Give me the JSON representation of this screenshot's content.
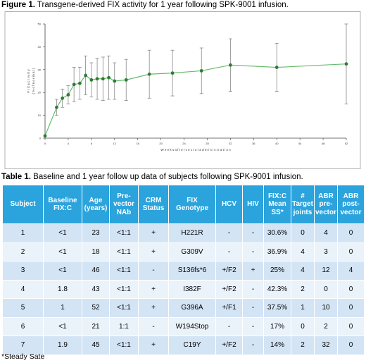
{
  "figure": {
    "label": "Figure 1.",
    "caption": " Transgene-derived FIX activity for 1 year following SPK-9001 infusion."
  },
  "chart_data": {
    "type": "line",
    "title": "",
    "xlabel": "W e e k s   a f t e r   v e c t o r   a d m i n i s t r a t i o n",
    "ylabel": "F I X   a c t i v i t y\n( %   o f   n o r m a l )",
    "xlim": [
      0,
      52
    ],
    "ylim": [
      0,
      50
    ],
    "xticks": [
      "0",
      "4",
      "8",
      "12",
      "16",
      "20",
      "24",
      "28",
      "32",
      "36",
      "40",
      "44",
      "48",
      "52"
    ],
    "yticks": [
      "0",
      "10",
      "20",
      "30",
      "40",
      "50"
    ],
    "grid": false,
    "color": "#2e7d32",
    "series": [
      {
        "x": [
          0,
          2,
          3,
          4,
          5,
          6,
          7,
          8,
          9,
          10,
          11,
          12,
          14,
          18,
          22,
          27,
          32,
          40,
          52
        ],
        "y": [
          1,
          13.5,
          17.5,
          19,
          23.5,
          24,
          27.5,
          25.5,
          26,
          26,
          26.5,
          25,
          25.5,
          28,
          28.5,
          29.5,
          32,
          31,
          32.5
        ],
        "err": [
          0,
          3.5,
          4,
          4,
          7.5,
          7,
          8.5,
          7.5,
          9,
          9.5,
          9.5,
          8,
          9,
          10.5,
          10,
          10,
          11.5,
          10.5,
          17.5
        ]
      }
    ]
  },
  "table": {
    "label": "Table 1.",
    "caption": " Baseline and 1 year follow up data of subjects following SPK-9001 infusion.",
    "headers": [
      "Subject",
      "Baseline FIX:C",
      "Age (years)",
      "Pre-vector NAb",
      "CRM Status",
      "FIX Genotype",
      "HCV",
      "HIV",
      "FIX:C Mean SS*",
      "# Target joints",
      "ABR pre-vector",
      "ABR post-vector"
    ],
    "rows": [
      [
        "1",
        "<1",
        "23",
        "<1:1",
        "+",
        "H221R",
        "-",
        "-",
        "30.6%",
        "0",
        "4",
        "0"
      ],
      [
        "2",
        "<1",
        "18",
        "<1:1",
        "+",
        "G309V",
        "-",
        "-",
        "36.9%",
        "4",
        "3",
        "0"
      ],
      [
        "3",
        "<1",
        "46",
        "<1:1",
        "-",
        "S136fs*6",
        "+/F2",
        "+",
        "25%",
        "4",
        "12",
        "4"
      ],
      [
        "4",
        "1.8",
        "43",
        "<1:1",
        "+",
        "I382F",
        "+/F2",
        "-",
        "42.3%",
        "2",
        "0",
        "0"
      ],
      [
        "5",
        "1",
        "52",
        "<1:1",
        "+",
        "G396A",
        "+/F1",
        "-",
        "37.5%",
        "1",
        "10",
        "0"
      ],
      [
        "6",
        "<1",
        "21",
        "1:1",
        "-",
        "W194Stop",
        "-",
        "-",
        "17%",
        "0",
        "2",
        "0"
      ],
      [
        "7",
        "1.9",
        "45",
        "<1:1",
        "+",
        "C19Y",
        "+/F2",
        "-",
        "14%",
        "2",
        "32",
        "0"
      ]
    ],
    "footnote": "*Steady Sate"
  }
}
